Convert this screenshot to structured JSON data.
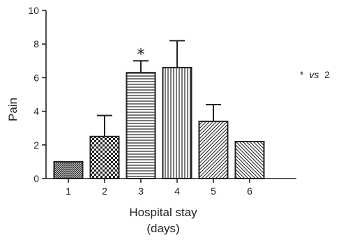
{
  "chart_data": {
    "type": "bar",
    "categories": [
      "1",
      "2",
      "3",
      "4",
      "5",
      "6"
    ],
    "values": [
      1.0,
      2.5,
      6.3,
      6.6,
      3.4,
      2.2
    ],
    "errors": [
      0,
      1.25,
      0.7,
      1.6,
      1.0,
      0
    ],
    "patterns": [
      "crosshatch-fine",
      "checker",
      "horizontal",
      "vertical",
      "diagonal-up",
      "diagonal-down"
    ],
    "significance_markers": [
      {
        "category": "3",
        "symbol": "*"
      }
    ],
    "y_ticks": [
      "0",
      "2",
      "4",
      "6",
      "8",
      "10"
    ],
    "ylim": [
      0,
      10
    ],
    "ylabel": "Pain",
    "xlabel": "Hospital stay",
    "xlabel_unit": "(days)",
    "note": {
      "star": "*",
      "italic": "vs",
      "value": "2"
    },
    "colors": {
      "stroke": "#222222",
      "fill": "#ffffff"
    }
  }
}
